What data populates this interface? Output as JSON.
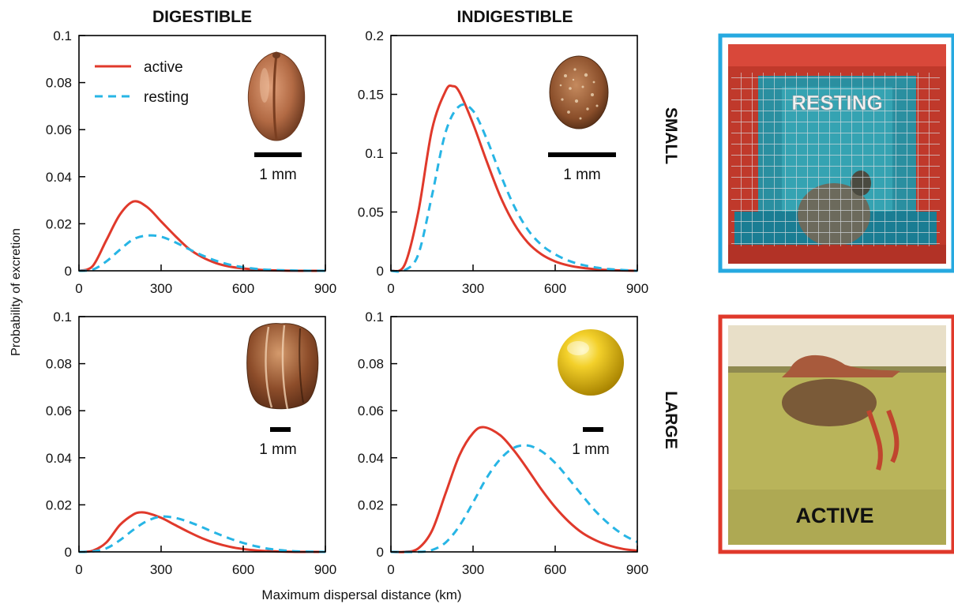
{
  "columns": [
    "DIGESTIBLE",
    "INDIGESTIBLE"
  ],
  "rows": [
    "SMALL",
    "LARGE"
  ],
  "ylabel": "Probability of excretion",
  "xlabel": "Maximum dispersal distance (km)",
  "legend": {
    "active": "active",
    "resting": "resting"
  },
  "scale_label": "1 mm",
  "photos": [
    {
      "label": "RESTING",
      "frame_color": "#26a9e0"
    },
    {
      "label": "ACTIVE",
      "frame_color": "#e0392b"
    }
  ],
  "colors": {
    "active": "#e0392b",
    "resting": "#27b5e5"
  },
  "chart_data": [
    {
      "type": "line",
      "row": "SMALL",
      "column": "DIGESTIBLE",
      "xlim": [
        0,
        900
      ],
      "xticks": [
        0,
        300,
        600,
        900
      ],
      "ylim": [
        0,
        0.1
      ],
      "yticks": [
        0,
        0.02,
        0.04,
        0.06,
        0.08,
        0.1
      ],
      "series": [
        {
          "name": "active",
          "x": [
            0,
            50,
            100,
            150,
            200,
            250,
            300,
            350,
            400,
            450,
            500,
            550,
            600,
            650,
            700,
            800,
            900
          ],
          "y": [
            0,
            0.002,
            0.013,
            0.024,
            0.0295,
            0.027,
            0.021,
            0.015,
            0.0095,
            0.0058,
            0.0033,
            0.0018,
            0.001,
            0.0005,
            0.0002,
            0,
            0
          ]
        },
        {
          "name": "resting",
          "x": [
            0,
            50,
            100,
            150,
            200,
            250,
            300,
            350,
            400,
            450,
            500,
            550,
            600,
            650,
            700,
            800,
            900
          ],
          "y": [
            0,
            0.0005,
            0.004,
            0.009,
            0.0135,
            0.015,
            0.0145,
            0.0122,
            0.0093,
            0.0066,
            0.0043,
            0.0026,
            0.0015,
            0.0008,
            0.0004,
            0.0001,
            0
          ]
        }
      ]
    },
    {
      "type": "line",
      "row": "SMALL",
      "column": "INDIGESTIBLE",
      "xlim": [
        0,
        900
      ],
      "xticks": [
        0,
        300,
        600,
        900
      ],
      "ylim": [
        0,
        0.2
      ],
      "yticks": [
        0,
        0.05,
        0.1,
        0.15,
        0.2
      ],
      "series": [
        {
          "name": "active",
          "x": [
            0,
            50,
            100,
            150,
            200,
            225,
            250,
            300,
            350,
            400,
            450,
            500,
            550,
            600,
            650,
            700,
            750,
            800,
            900
          ],
          "y": [
            0,
            0.005,
            0.05,
            0.12,
            0.153,
            0.157,
            0.152,
            0.125,
            0.093,
            0.063,
            0.04,
            0.024,
            0.014,
            0.008,
            0.0045,
            0.0025,
            0.0013,
            0.0006,
            0
          ]
        },
        {
          "name": "resting",
          "x": [
            0,
            50,
            100,
            150,
            200,
            250,
            300,
            350,
            400,
            450,
            500,
            550,
            600,
            650,
            700,
            750,
            800,
            900
          ],
          "y": [
            0,
            0.0005,
            0.014,
            0.064,
            0.118,
            0.14,
            0.136,
            0.112,
            0.082,
            0.055,
            0.035,
            0.022,
            0.014,
            0.0085,
            0.005,
            0.0028,
            0.0014,
            0
          ]
        }
      ]
    },
    {
      "type": "line",
      "row": "LARGE",
      "column": "DIGESTIBLE",
      "xlim": [
        0,
        900
      ],
      "xticks": [
        0,
        300,
        600,
        900
      ],
      "ylim": [
        0,
        0.1
      ],
      "yticks": [
        0,
        0.02,
        0.04,
        0.06,
        0.08,
        0.1
      ],
      "series": [
        {
          "name": "active",
          "x": [
            0,
            50,
            100,
            150,
            200,
            225,
            250,
            300,
            350,
            400,
            450,
            500,
            550,
            600,
            650,
            700,
            800,
            900
          ],
          "y": [
            0,
            0.0005,
            0.004,
            0.0115,
            0.016,
            0.0168,
            0.0165,
            0.0145,
            0.0115,
            0.0085,
            0.0058,
            0.0037,
            0.0022,
            0.0012,
            0.0006,
            0.0003,
            0,
            0
          ]
        },
        {
          "name": "resting",
          "x": [
            0,
            50,
            100,
            150,
            200,
            250,
            300,
            350,
            400,
            450,
            500,
            550,
            600,
            650,
            700,
            750,
            800,
            900
          ],
          "y": [
            0,
            0.0002,
            0.0015,
            0.005,
            0.0095,
            0.0132,
            0.015,
            0.0145,
            0.0128,
            0.0105,
            0.008,
            0.0057,
            0.0038,
            0.0023,
            0.0012,
            0.0006,
            0.0002,
            0
          ]
        }
      ]
    },
    {
      "type": "line",
      "row": "LARGE",
      "column": "INDIGESTIBLE",
      "xlim": [
        0,
        900
      ],
      "xticks": [
        0,
        300,
        600,
        900
      ],
      "ylim": [
        0,
        0.1
      ],
      "yticks": [
        0,
        0.02,
        0.04,
        0.06,
        0.08,
        0.1
      ],
      "series": [
        {
          "name": "active",
          "x": [
            0,
            50,
            100,
            150,
            200,
            250,
            300,
            340,
            400,
            450,
            500,
            550,
            600,
            650,
            700,
            750,
            800,
            850,
            900
          ],
          "y": [
            0,
            0,
            0.0015,
            0.009,
            0.025,
            0.041,
            0.0505,
            0.053,
            0.0495,
            0.043,
            0.035,
            0.0265,
            0.019,
            0.0128,
            0.008,
            0.0048,
            0.0026,
            0.0012,
            0.0005
          ]
        },
        {
          "name": "resting",
          "x": [
            0,
            100,
            150,
            200,
            250,
            300,
            350,
            400,
            450,
            500,
            550,
            600,
            650,
            700,
            750,
            800,
            850,
            900
          ],
          "y": [
            0,
            0,
            0.0008,
            0.004,
            0.011,
            0.021,
            0.0315,
            0.0395,
            0.0443,
            0.0452,
            0.0428,
            0.0378,
            0.031,
            0.0238,
            0.017,
            0.0115,
            0.0072,
            0.0042
          ]
        }
      ]
    }
  ]
}
